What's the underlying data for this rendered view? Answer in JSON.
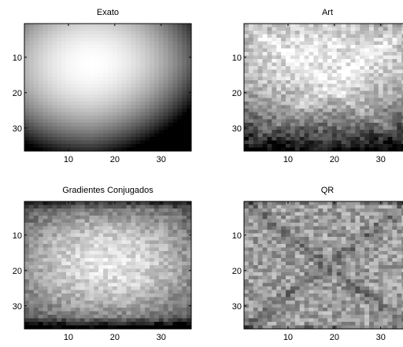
{
  "figure": {
    "colormap": "gray",
    "grid": false,
    "panels": [
      {
        "title": "Exato",
        "pattern": "exact"
      },
      {
        "title": "Art",
        "pattern": "art"
      },
      {
        "title": "Gradientes Conjugados",
        "pattern": "cg"
      },
      {
        "title": "QR",
        "pattern": "qr"
      }
    ]
  },
  "chart_data": [
    {
      "type": "heatmap",
      "title": "Exato",
      "grid_size": [
        36,
        36
      ],
      "x_ticks": [
        10,
        20,
        30
      ],
      "y_ticks": [
        10,
        20,
        30
      ],
      "xlim": [
        0.5,
        36.5
      ],
      "ylim": [
        36.5,
        0.5
      ],
      "colormap": "gray",
      "description_values": "smooth intensity field, maximum near (x=15, y=12), decreasing toward edges, darkest at bottom-right"
    },
    {
      "type": "heatmap",
      "title": "Art",
      "grid_size": [
        36,
        36
      ],
      "x_ticks": [
        10,
        20,
        30
      ],
      "y_ticks": [
        10,
        20,
        30
      ],
      "xlim": [
        0.5,
        36.5
      ],
      "ylim": [
        36.5,
        0.5
      ],
      "colormap": "gray"
    },
    {
      "type": "heatmap",
      "title": "Gradientes Conjugados",
      "grid_size": [
        36,
        36
      ],
      "x_ticks": [
        10,
        20,
        30
      ],
      "y_ticks": [
        10,
        20,
        30
      ],
      "xlim": [
        0.5,
        36.5
      ],
      "ylim": [
        36.5,
        0.5
      ],
      "colormap": "gray"
    },
    {
      "type": "heatmap",
      "title": "QR",
      "grid_size": [
        36,
        36
      ],
      "x_ticks": [
        10,
        20,
        30
      ],
      "y_ticks": [
        10,
        20,
        30
      ],
      "xlim": [
        0.5,
        36.5
      ],
      "ylim": [
        36.5,
        0.5
      ],
      "colormap": "gray"
    }
  ]
}
